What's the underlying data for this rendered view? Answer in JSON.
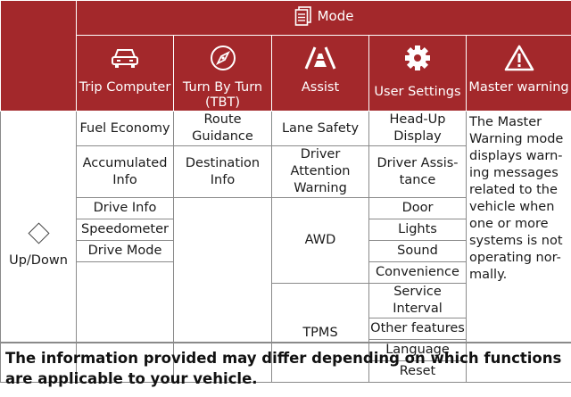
{
  "header": {
    "mode_label": "Mode",
    "mode_icon": "document-pages-icon",
    "columns": [
      {
        "label": "Trip Computer",
        "icon": "car-front-icon"
      },
      {
        "label": "Turn By Turn\n(TBT)",
        "icon": "compass-icon"
      },
      {
        "label": "Assist",
        "icon": "lane-road-icon"
      },
      {
        "label": "User Settings",
        "icon": "gear-icon"
      },
      {
        "label": "Master warning",
        "icon": "warning-triangle-icon"
      }
    ]
  },
  "row_control": {
    "label": "Up/Down",
    "icon": "up-down-diamond-icon"
  },
  "trip_computer": [
    "Fuel Economy",
    "Accumulated\nInfo",
    "Drive Info",
    "Speedometer",
    "Drive Mode"
  ],
  "tbt": [
    "Route Guidance",
    "Destination Info"
  ],
  "assist": [
    "Lane Safety",
    "Driver Attention\nWarning",
    "AWD",
    "TPMS"
  ],
  "user_settings": [
    "Head-Up Display",
    "Driver Assis-\ntance",
    "Door",
    "Lights",
    "Sound",
    "Convenience",
    "Service Interval",
    "Other features",
    "Language",
    "Reset"
  ],
  "master_warning_text": "The Master\nWarning mode\ndisplays warn-\ning messages\nrelated to the\nvehicle when\none or more\nsystems is not\noperating nor-\nmally.",
  "footnote": "The information provided may differ depending on which functions are applicable to your vehicle.",
  "colors": {
    "header_bg": "#a3282b",
    "header_text": "#ffffff",
    "grid": "#8a8a8a"
  }
}
